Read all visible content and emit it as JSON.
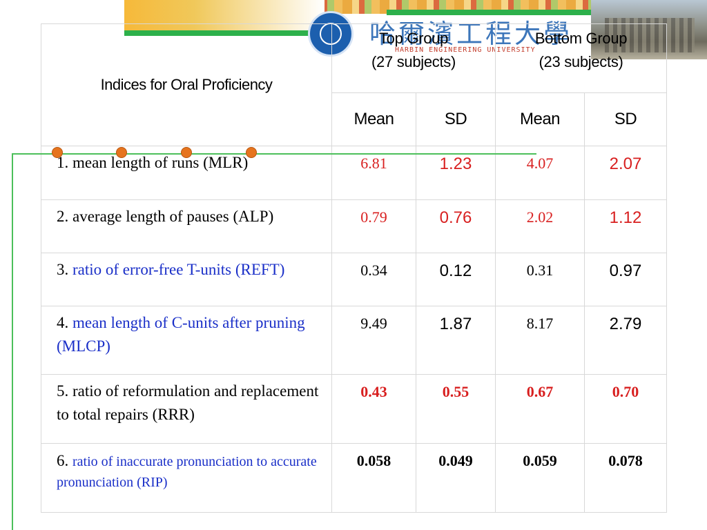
{
  "header": {
    "university_cn": "哈爾濱工程大學",
    "university_en": "HARBIN ENGINEERING UNIVERSITY"
  },
  "table": {
    "title": "Indices for Oral Proficiency",
    "groups": [
      {
        "line1": "Top Group",
        "line2": "(27 subjects)"
      },
      {
        "line1": "Bottom Group",
        "line2": "(23 subjects)"
      }
    ],
    "stat_labels": [
      "Mean",
      "SD",
      "Mean",
      "SD"
    ],
    "rows": [
      {
        "prefix": "1. ",
        "label": "mean length of runs (MLR)",
        "label_color": "#000000",
        "values": [
          "6.81",
          "1.23",
          "4.07",
          "2.07"
        ],
        "value_color": "#d81f1f"
      },
      {
        "prefix": "2. ",
        "label": "average length of pauses (ALP)",
        "label_color": "#000000",
        "values": [
          "0.79",
          "0.76",
          "2.02",
          "1.12"
        ],
        "value_color": "#d81f1f"
      },
      {
        "prefix": "3. ",
        "label": "ratio of error-free T-units (REFT)",
        "label_color": "#1a2fc8",
        "values": [
          "0.34",
          "0.12",
          "0.31",
          "0.97"
        ],
        "value_color": "#000000"
      },
      {
        "prefix": "4. ",
        "label": "mean length of C-units after pruning",
        "label_suffix": " (MLCP)",
        "label_color": "#1a2fc8",
        "values": [
          "9.49",
          "1.87",
          "8.17",
          "2.79"
        ],
        "value_color": "#000000"
      },
      {
        "prefix": "5. ",
        "label": "ratio of reformulation and replacement to total repairs (RRR)",
        "label_color": "#000000",
        "values": [
          "0.43",
          "0.55",
          "0.67",
          "0.70"
        ],
        "value_color": "#d81f1f"
      },
      {
        "prefix": "6. ",
        "label": "ratio of inaccurate pronunciation to accurate pronunciation (RIP)",
        "label_color": "#1a2fc8",
        "values": [
          "0.058",
          "0.049",
          "0.059",
          "0.078"
        ],
        "value_color": "#000000"
      }
    ]
  },
  "colors": {
    "accent_green": "#2db04b",
    "dot_orange": "#e6741e",
    "value_red": "#d81f1f",
    "label_blue": "#1a2fc8"
  }
}
